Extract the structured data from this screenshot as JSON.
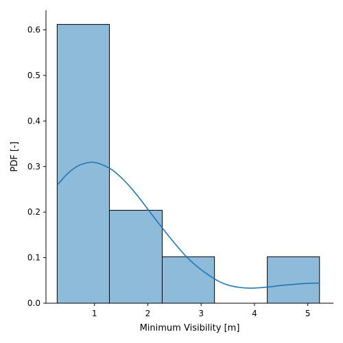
{
  "chart_data": {
    "type": "bar",
    "xlabel": "Minimum Visibility [m]",
    "ylabel": "PDF [-]",
    "xlim": [
      0.09,
      5.48
    ],
    "ylim": [
      0,
      0.643
    ],
    "xticks": [
      {
        "value": 1,
        "label": "1"
      },
      {
        "value": 2,
        "label": "2"
      },
      {
        "value": 3,
        "label": "3"
      },
      {
        "value": 4,
        "label": "4"
      },
      {
        "value": 5,
        "label": "5"
      }
    ],
    "yticks": [
      {
        "value": 0.0,
        "label": "0.0"
      },
      {
        "value": 0.1,
        "label": "0.1"
      },
      {
        "value": 0.2,
        "label": "0.2"
      },
      {
        "value": 0.3,
        "label": "0.3"
      },
      {
        "value": 0.4,
        "label": "0.4"
      },
      {
        "value": 0.5,
        "label": "0.5"
      },
      {
        "value": 0.6,
        "label": "0.6"
      }
    ],
    "bins": [
      {
        "x0": 0.3,
        "x1": 1.28,
        "value": 0.612
      },
      {
        "x0": 1.28,
        "x1": 2.27,
        "value": 0.204
      },
      {
        "x0": 2.27,
        "x1": 3.25,
        "value": 0.102
      },
      {
        "x0": 3.25,
        "x1": 4.24,
        "value": 0.0
      },
      {
        "x0": 4.24,
        "x1": 5.22,
        "value": 0.102
      }
    ],
    "kde": {
      "x": [
        0.3,
        0.5,
        0.7,
        0.9,
        1.0,
        1.1,
        1.3,
        1.5,
        1.7,
        1.9,
        2.1,
        2.3,
        2.5,
        2.7,
        2.9,
        3.1,
        3.3,
        3.5,
        3.7,
        3.9,
        4.1,
        4.3,
        4.5,
        4.7,
        4.9,
        5.1,
        5.22
      ],
      "y": [
        0.259,
        0.285,
        0.302,
        0.309,
        0.309,
        0.306,
        0.295,
        0.276,
        0.251,
        0.222,
        0.191,
        0.161,
        0.132,
        0.105,
        0.083,
        0.065,
        0.05,
        0.04,
        0.035,
        0.033,
        0.034,
        0.036,
        0.039,
        0.041,
        0.043,
        0.044,
        0.044
      ]
    },
    "colors": {
      "bar_fill": "#8fbbdb",
      "bar_edge": "#000000",
      "kde_line": "#1f77b4"
    },
    "grid": false,
    "legend": "none"
  }
}
